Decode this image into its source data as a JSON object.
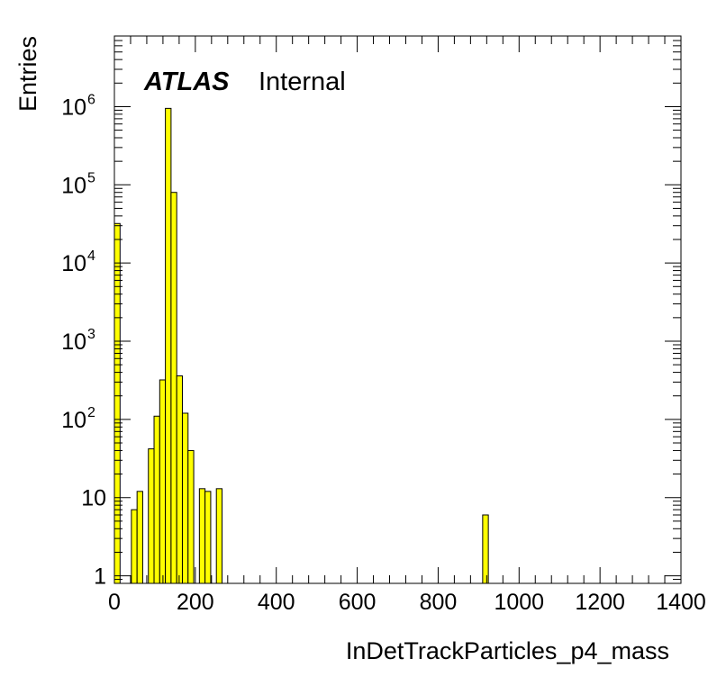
{
  "chart_data": {
    "type": "bar",
    "label_main": "ATLAS",
    "label_sub": "Internal",
    "xlabel": "InDetTrackParticles_p4_mass",
    "ylabel": "Entries",
    "xlim": [
      0,
      1400
    ],
    "ylim": [
      0.8,
      8000000
    ],
    "y_scale": "log",
    "bin_width": 14,
    "x_ticks": [
      {
        "value": 0,
        "label": "0"
      },
      {
        "value": 200,
        "label": "200"
      },
      {
        "value": 400,
        "label": "400"
      },
      {
        "value": 600,
        "label": "600"
      },
      {
        "value": 800,
        "label": "800"
      },
      {
        "value": 1000,
        "label": "1000"
      },
      {
        "value": 1200,
        "label": "1200"
      },
      {
        "value": 1400,
        "label": "1400"
      }
    ],
    "y_ticks": [
      {
        "value": 1,
        "base": "1",
        "exp": ""
      },
      {
        "value": 10,
        "base": "10",
        "exp": ""
      },
      {
        "value": 100,
        "base": "10",
        "exp": "2"
      },
      {
        "value": 1000,
        "base": "10",
        "exp": "3"
      },
      {
        "value": 10000,
        "base": "10",
        "exp": "4"
      },
      {
        "value": 100000,
        "base": "10",
        "exp": "5"
      },
      {
        "value": 1000000,
        "base": "10",
        "exp": "6"
      }
    ],
    "bins": [
      {
        "x": 0,
        "value": 32000
      },
      {
        "x": 42,
        "value": 7
      },
      {
        "x": 56,
        "value": 12
      },
      {
        "x": 84,
        "value": 42
      },
      {
        "x": 98,
        "value": 110
      },
      {
        "x": 112,
        "value": 320
      },
      {
        "x": 126,
        "value": 950000
      },
      {
        "x": 140,
        "value": 80000
      },
      {
        "x": 154,
        "value": 360
      },
      {
        "x": 168,
        "value": 120
      },
      {
        "x": 182,
        "value": 40
      },
      {
        "x": 210,
        "value": 13
      },
      {
        "x": 224,
        "value": 12
      },
      {
        "x": 252,
        "value": 13
      },
      {
        "x": 910,
        "value": 6
      }
    ],
    "colors": {
      "fill": "#ffff00",
      "line": "#000000"
    }
  }
}
